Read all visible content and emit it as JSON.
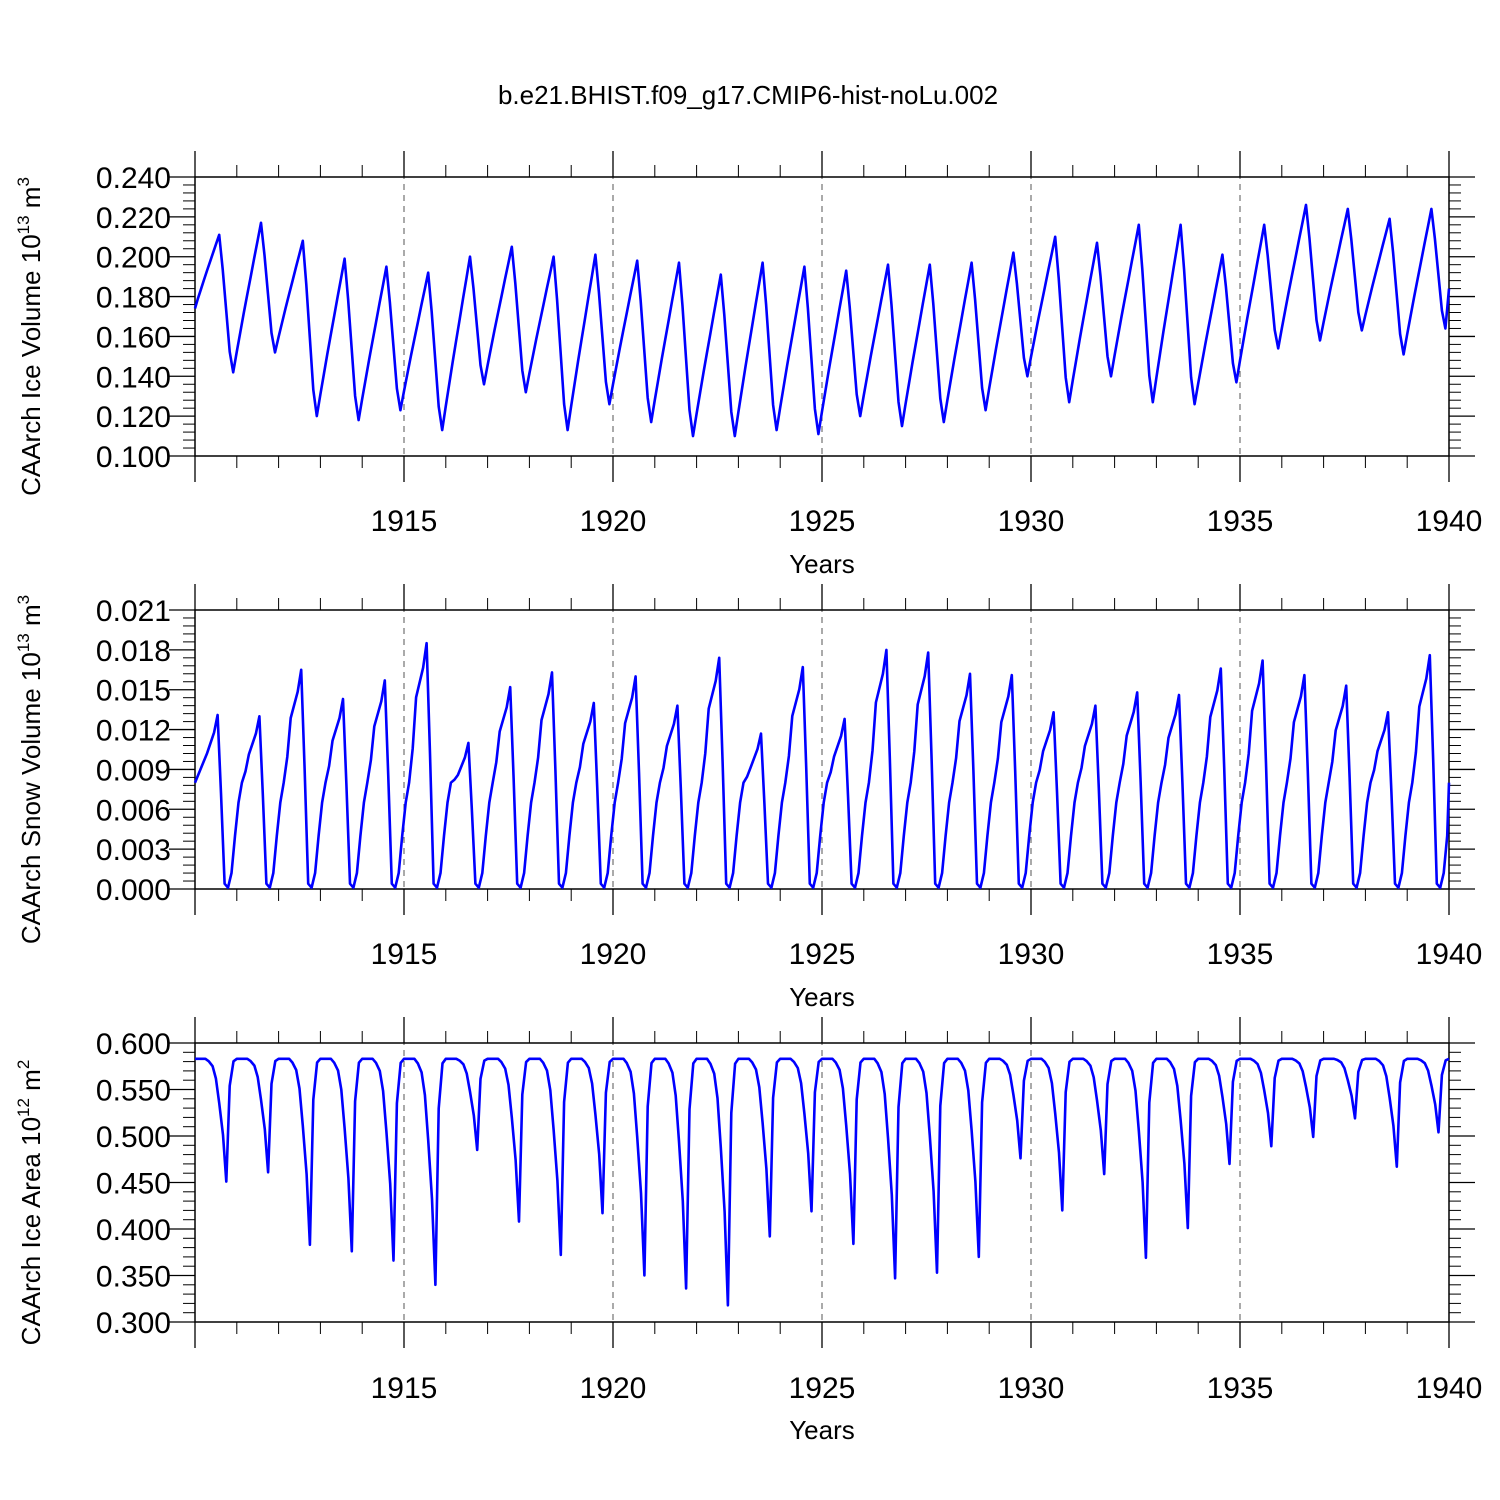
{
  "title": "b.e21.BHIST.f09_g17.CMIP6-hist-noLu.002",
  "series_color": "#0000ff",
  "chart_data": [
    {
      "type": "line",
      "name": "ice-volume",
      "ylabel": {
        "main": "CAArch Ice Volume 10",
        "exp1": "13",
        "unit": " m",
        "exp2": "3"
      },
      "xlabel": "Years",
      "xlim": [
        1910.0,
        1940.0
      ],
      "ylim": [
        0.1,
        0.24
      ],
      "ytick_values": [
        0.1,
        0.12,
        0.14,
        0.16,
        0.18,
        0.2,
        0.22,
        0.24
      ],
      "ytick_labels": [
        "0.100",
        "0.120",
        "0.140",
        "0.160",
        "0.180",
        "0.200",
        "0.220",
        "0.240"
      ],
      "xtick_values": [
        1915,
        1920,
        1925,
        1930,
        1935,
        1940
      ],
      "xtick_labels": [
        "1915",
        "1920",
        "1925",
        "1930",
        "1935",
        "1940"
      ],
      "grid": "vertical dashed at major x ticks",
      "x": [
        1910.0,
        1910.917,
        1911.917,
        1912.917,
        1913.917,
        1914.917,
        1915.917,
        1916.917,
        1917.917,
        1918.917,
        1919.917,
        1920.917,
        1921.917,
        1922.917,
        1923.917,
        1924.917,
        1925.917,
        1926.917,
        1927.917,
        1928.917,
        1929.917,
        1930.917,
        1931.917,
        1932.917,
        1933.917,
        1934.917,
        1935.917,
        1936.917,
        1937.917,
        1938.917,
        1939.917,
        1940.0
      ],
      "y": [
        0.174,
        0.142,
        0.152,
        0.12,
        0.118,
        0.123,
        0.113,
        0.136,
        0.132,
        0.113,
        0.126,
        0.117,
        0.11,
        0.11,
        0.113,
        0.111,
        0.12,
        0.115,
        0.117,
        0.123,
        0.14,
        0.127,
        0.14,
        0.127,
        0.126,
        0.137,
        0.154,
        0.158,
        0.163,
        0.151,
        0.164,
        0.184
      ],
      "peaks": [
        0.211,
        0.217,
        0.208,
        0.199,
        0.195,
        0.192,
        0.2,
        0.205,
        0.2,
        0.201,
        0.198,
        0.197,
        0.191,
        0.197,
        0.195,
        0.193,
        0.196,
        0.196,
        0.197,
        0.202,
        0.21,
        0.207,
        0.216,
        0.216,
        0.201,
        0.216,
        0.226,
        0.224,
        0.219,
        0.224
      ],
      "peak_x": [
        1910.58,
        1911.58,
        1912.58,
        1913.58,
        1914.58,
        1915.58,
        1916.58,
        1917.58,
        1918.58,
        1919.58,
        1920.58,
        1921.58,
        1922.58,
        1923.58,
        1924.58,
        1925.58,
        1926.58,
        1927.58,
        1928.58,
        1929.58,
        1930.58,
        1931.58,
        1932.58,
        1933.58,
        1934.58,
        1935.58,
        1936.58,
        1937.58,
        1938.58,
        1939.58
      ]
    },
    {
      "type": "line",
      "name": "snow-volume",
      "ylabel": {
        "main": "CAArch Snow Volume 10",
        "exp1": "13",
        "unit": " m",
        "exp2": "3"
      },
      "xlabel": "Years",
      "xlim": [
        1910.0,
        1940.0
      ],
      "ylim": [
        0.0,
        0.021
      ],
      "ytick_values": [
        0.0,
        0.003,
        0.006,
        0.009,
        0.012,
        0.015,
        0.018,
        0.021
      ],
      "ytick_labels": [
        "0.000",
        "0.003",
        "0.006",
        "0.009",
        "0.012",
        "0.015",
        "0.018",
        "0.021"
      ],
      "xtick_values": [
        1915,
        1920,
        1925,
        1930,
        1935,
        1940
      ],
      "xtick_labels": [
        "1915",
        "1920",
        "1925",
        "1930",
        "1935",
        "1940"
      ],
      "grid": "vertical dashed at major x ticks",
      "start_value": 0.008,
      "end_value": 0.008,
      "peaks": [
        0.0131,
        0.013,
        0.0165,
        0.0143,
        0.0157,
        0.0185,
        0.011,
        0.0152,
        0.0163,
        0.014,
        0.016,
        0.0138,
        0.0174,
        0.0117,
        0.0167,
        0.0128,
        0.018,
        0.0178,
        0.0162,
        0.0161,
        0.0133,
        0.0138,
        0.0148,
        0.0146,
        0.0166,
        0.0172,
        0.0161,
        0.0153,
        0.0133,
        0.0176
      ],
      "peak_x": [
        1910.54,
        1911.54,
        1912.54,
        1913.54,
        1914.54,
        1915.54,
        1916.54,
        1917.54,
        1918.54,
        1919.54,
        1920.54,
        1921.54,
        1922.54,
        1923.54,
        1924.54,
        1925.54,
        1926.54,
        1927.54,
        1928.54,
        1929.54,
        1930.54,
        1931.54,
        1932.54,
        1933.54,
        1934.54,
        1935.54,
        1936.54,
        1937.54,
        1938.54,
        1939.54
      ],
      "minima": 0.0
    },
    {
      "type": "line",
      "name": "ice-area",
      "ylabel": {
        "main": "CAArch Ice Area 10",
        "exp1": "12",
        "unit": " m",
        "exp2": "2"
      },
      "xlabel": "Years",
      "xlim": [
        1910.0,
        1940.0
      ],
      "ylim": [
        0.3,
        0.6
      ],
      "ytick_values": [
        0.3,
        0.35,
        0.4,
        0.45,
        0.5,
        0.55,
        0.6
      ],
      "ytick_labels": [
        "0.300",
        "0.350",
        "0.400",
        "0.450",
        "0.500",
        "0.550",
        "0.600"
      ],
      "xtick_values": [
        1915,
        1920,
        1925,
        1930,
        1935,
        1940
      ],
      "xtick_labels": [
        "1915",
        "1920",
        "1925",
        "1930",
        "1935",
        "1940"
      ],
      "grid": "vertical dashed at major x ticks",
      "max_value": 0.583,
      "minima": [
        0.451,
        0.461,
        0.383,
        0.376,
        0.366,
        0.34,
        0.485,
        0.408,
        0.372,
        0.417,
        0.35,
        0.336,
        0.318,
        0.392,
        0.419,
        0.384,
        0.347,
        0.353,
        0.37,
        0.476,
        0.42,
        0.459,
        0.369,
        0.401,
        0.47,
        0.489,
        0.499,
        0.519,
        0.467,
        0.504
      ],
      "min_x": [
        1910.75,
        1911.75,
        1912.75,
        1913.75,
        1914.75,
        1915.75,
        1916.75,
        1917.75,
        1918.75,
        1919.75,
        1920.75,
        1921.75,
        1922.75,
        1923.75,
        1924.75,
        1925.75,
        1926.75,
        1927.75,
        1928.75,
        1929.75,
        1930.75,
        1931.75,
        1932.75,
        1933.75,
        1934.75,
        1935.75,
        1936.75,
        1937.75,
        1938.75,
        1939.75
      ]
    }
  ]
}
